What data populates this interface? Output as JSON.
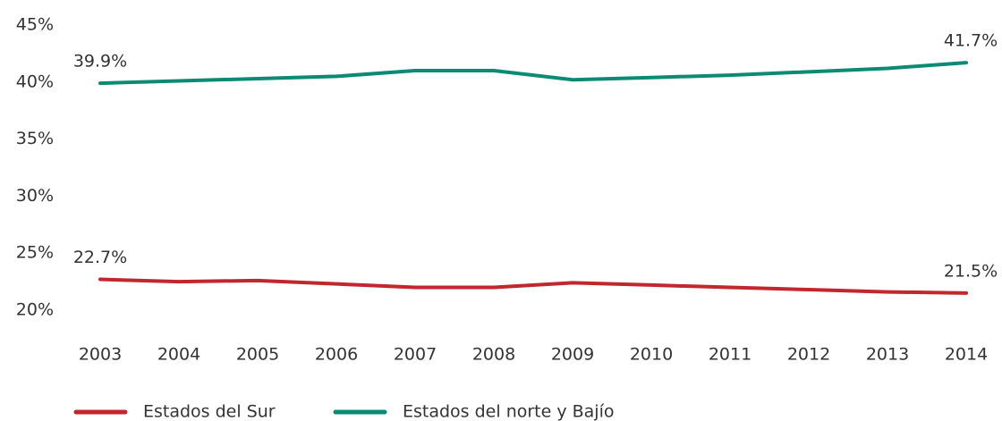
{
  "chart_data": {
    "type": "line",
    "categories": [
      "2003",
      "2004",
      "2005",
      "2006",
      "2007",
      "2008",
      "2009",
      "2010",
      "2011",
      "2012",
      "2013",
      "2014"
    ],
    "series": [
      {
        "name": "Estados del Sur",
        "color": "#c1272d",
        "values": [
          22.7,
          22.5,
          22.6,
          22.3,
          22.0,
          22.0,
          22.4,
          22.2,
          22.0,
          21.8,
          21.6,
          21.5
        ],
        "value_labels": [
          "22.7%",
          null,
          null,
          null,
          null,
          null,
          null,
          null,
          null,
          null,
          null,
          "21.5%"
        ]
      },
      {
        "name": "Estados del norte y Bajío",
        "color": "#0b8a74",
        "values": [
          39.9,
          40.1,
          40.3,
          40.5,
          41.0,
          41.0,
          40.2,
          40.4,
          40.6,
          40.9,
          41.2,
          41.7
        ],
        "value_labels": [
          "39.9%",
          null,
          null,
          null,
          null,
          null,
          null,
          null,
          null,
          null,
          null,
          "41.7%"
        ]
      }
    ],
    "ylim": [
      20,
      45
    ],
    "yticks": [
      {
        "value": 20,
        "label": "20%"
      },
      {
        "value": 25,
        "label": "25%"
      },
      {
        "value": 30,
        "label": "30%"
      },
      {
        "value": 35,
        "label": "35%"
      },
      {
        "value": 40,
        "label": "40%"
      },
      {
        "value": 45,
        "label": "45%"
      }
    ],
    "grid": false,
    "legend": "bottom"
  }
}
